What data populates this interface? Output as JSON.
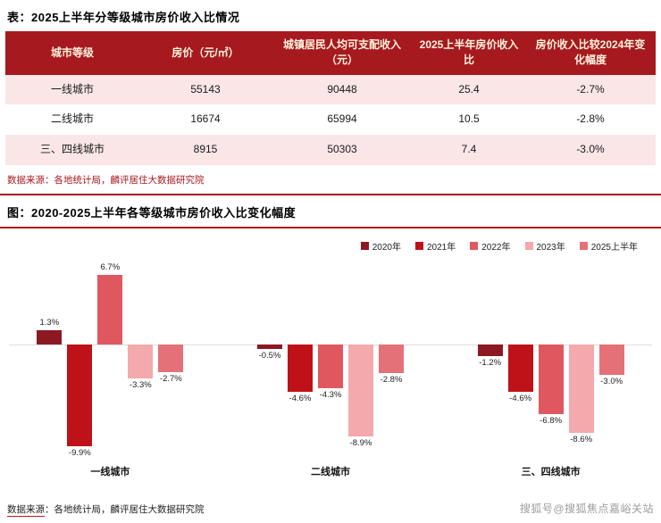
{
  "table_section": {
    "title": "表：2025上半年分等级城市房价收入比情况",
    "columns": [
      "城市等级",
      "房价（元/㎡）",
      "城镇居民人均可支配收入（元）",
      "2025上半年房价收入比",
      "房价收入比较2024年变化幅度"
    ],
    "rows": [
      [
        "一线城市",
        "55143",
        "90448",
        "25.4",
        "-2.7%"
      ],
      [
        "二线城市",
        "16674",
        "65994",
        "10.5",
        "-2.8%"
      ],
      [
        "三、四线城市",
        "8915",
        "50303",
        "7.4",
        "-3.0%"
      ]
    ],
    "source": "数据来源：各地统计局，麟评居住大数据研究院"
  },
  "chart_section": {
    "title": "图：2020-2025上半年各等级城市房价收入比变化幅度",
    "source_prefix": "数据来源",
    "source_rest": "：各地统计局，麟评居住大数据研究院",
    "watermark": "搜狐号@搜狐焦点嘉峪关站"
  },
  "chart_data": {
    "type": "bar",
    "categories": [
      "一线城市",
      "二线城市",
      "三、四线城市"
    ],
    "series": [
      {
        "name": "2020年",
        "color": "#8C1822",
        "values": [
          1.3,
          -0.5,
          -1.2
        ]
      },
      {
        "name": "2021年",
        "color": "#BF1218",
        "values": [
          -9.9,
          -4.6,
          -4.6
        ]
      },
      {
        "name": "2022年",
        "color": "#E0585F",
        "values": [
          6.7,
          -4.3,
          -6.8
        ]
      },
      {
        "name": "2023年",
        "color": "#F4A9AC",
        "values": [
          -3.3,
          -8.9,
          -8.6
        ]
      },
      {
        "name": "2025上半年",
        "color": "#E47177",
        "values": [
          -2.7,
          -2.8,
          -3.0
        ]
      }
    ],
    "value_label_format": "percent",
    "ylim": [
      -11,
      8
    ],
    "grid": false,
    "legend_position": "top-right"
  },
  "colors": {
    "header_bg": "#A6191E",
    "header_text": "#FFF4DE",
    "row_alt_bg": "#FAE6E6",
    "accent": "#A6191E",
    "zero_line": "#DDDDDD"
  }
}
